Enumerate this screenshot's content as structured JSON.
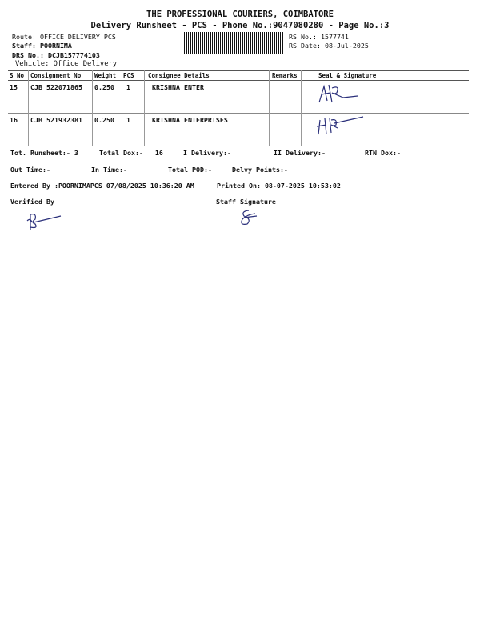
{
  "header": {
    "company": "THE PROFESSIONAL COURIERS, COIMBATORE",
    "subtitle": "Delivery Runsheet - PCS - Phone No.:9047080280 - Page No.:3",
    "route": "Route: OFFICE DELIVERY PCS",
    "staff": "Staff: POORNIMA",
    "drs_no": "DRS No.: DCJB157774103",
    "vehicle": "Vehicle: Office Delivery",
    "rs_no": "RS No.: 1577741",
    "rs_date": "RS Date: 08-Jul-2025"
  },
  "table": {
    "columns": [
      "S No",
      "Consignment No",
      "Weight",
      "PCS",
      "Consignee Details",
      "Remarks",
      "Seal & Signature"
    ],
    "rows": [
      {
        "sno": "15",
        "consignment": "CJB 522071865",
        "weight": "0.250",
        "pcs": "1",
        "consignee": "KRISHNA ENTER",
        "remarks": ""
      },
      {
        "sno": "16",
        "consignment": "CJB 521932381",
        "weight": "0.250",
        "pcs": "1",
        "consignee": "KRISHNA ENTERPRISES",
        "remarks": ""
      }
    ]
  },
  "summary": {
    "tot_runsheet": "Tot. Runsheet:- 3",
    "total_dox": "Total Dox:-   16",
    "i_delivery": "I Delivery:-",
    "ii_delivery": "II Delivery:-",
    "rtn_dox": "RTN Dox:-",
    "out_time": "Out Time:-",
    "in_time": "In Time:-",
    "total_pod": "Total POD:-",
    "delvy_points": "Delvy Points:-",
    "entered_by": "Entered By :POORNIMAPCS 07/08/2025 10:36:20 AM",
    "printed_on": "Printed On: 08-07-2025 10:53:02",
    "verified_by": "Verified By",
    "staff_signature": "Staff Signature"
  },
  "colors": {
    "ink": "#111111",
    "signature": "#2a2f7a"
  }
}
